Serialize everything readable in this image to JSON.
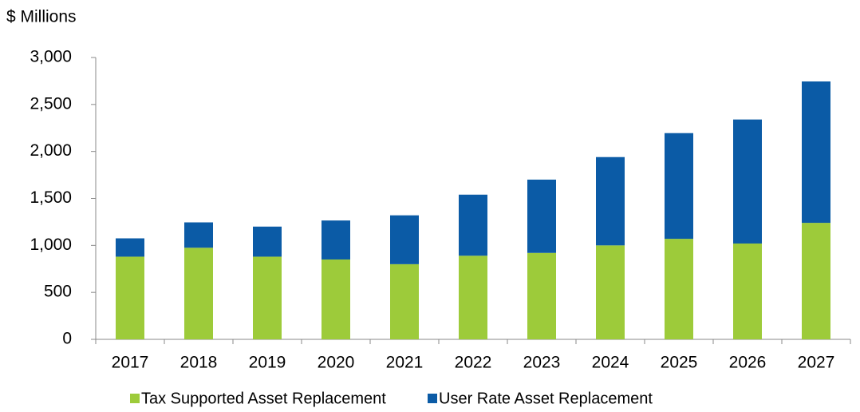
{
  "chart_data": {
    "type": "stacked_bar",
    "y_axis_label": "$ Millions",
    "categories": [
      "2017",
      "2018",
      "2019",
      "2020",
      "2021",
      "2022",
      "2023",
      "2024",
      "2025",
      "2026",
      "2027"
    ],
    "series": [
      {
        "name": "Tax Supported Asset Replacement",
        "color": "#9dcb3a",
        "values": [
          880,
          975,
          880,
          850,
          800,
          890,
          920,
          1000,
          1070,
          1020,
          1240
        ]
      },
      {
        "name": "User Rate Asset Replacement",
        "color": "#0b5ba6",
        "values": [
          195,
          270,
          320,
          415,
          520,
          650,
          780,
          940,
          1125,
          1320,
          1505
        ]
      }
    ],
    "ylim": [
      0,
      3000
    ],
    "yticks": [
      0,
      500,
      {
        "value": 1000,
        "label": "1,000"
      },
      {
        "value": 1500,
        "label": "1,500"
      },
      {
        "value": 2000,
        "label": "2,000"
      },
      {
        "value": 2500,
        "label": "2,500"
      },
      {
        "value": 3000,
        "label": "3,000"
      }
    ],
    "legend": "bottom"
  }
}
